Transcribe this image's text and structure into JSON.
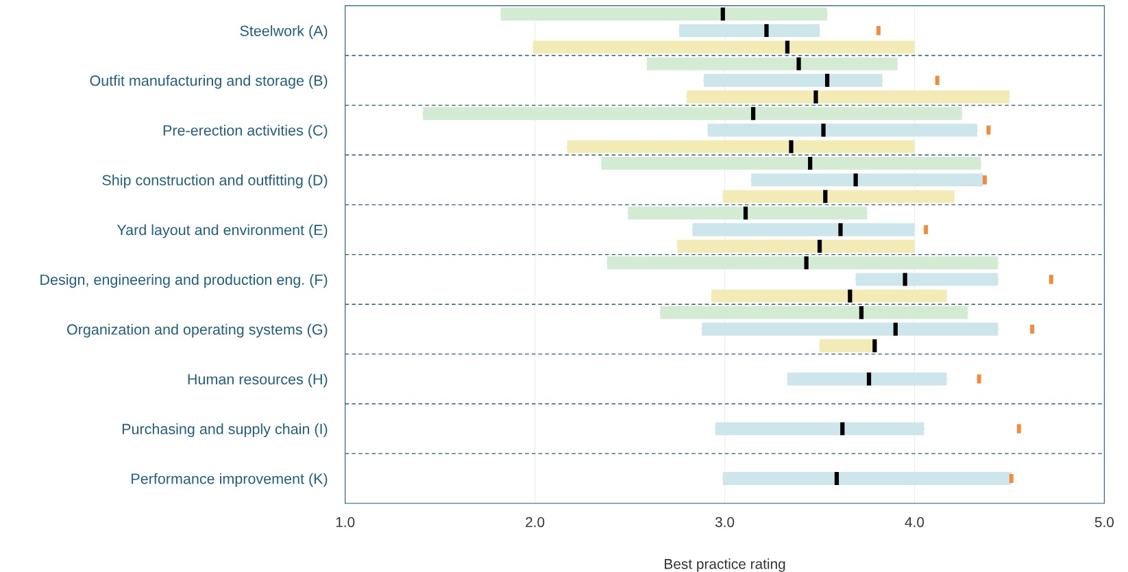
{
  "chart_data": {
    "type": "box",
    "orientation": "horizontal",
    "xlabel": "Best practice rating",
    "categories": [
      null,
      "Steelwork (A)",
      null,
      null,
      "Outfit manufacturing and storage (B)",
      null,
      null,
      "Pre-erection activities (C)",
      null,
      null,
      "Ship construction and outfitting (D)",
      null,
      null,
      "Yard layout and environment (E)",
      null,
      null,
      "Design, engineering and production eng. (F)",
      null,
      null,
      "Organization and operating systems (G)",
      null,
      null,
      "Human resources (H)",
      null,
      null,
      "Purchasing and supply chain (I)",
      null,
      null,
      "Performance improvement (K)",
      null
    ],
    "series": [
      {
        "color": "#d3ebd3",
        "boxes": [
          {
            "low": 1.82,
            "q1": 1.82,
            "median": 2.99,
            "q3": 3.54,
            "high": 3.54
          },
          null,
          null,
          {
            "low": 2.59,
            "q1": 2.59,
            "median": 3.39,
            "q3": 3.91,
            "high": 3.91
          },
          null,
          null,
          {
            "low": 1.41,
            "q1": 1.41,
            "median": 3.15,
            "q3": 4.25,
            "high": 4.25
          },
          null,
          null,
          {
            "low": 2.35,
            "q1": 2.35,
            "median": 3.45,
            "q3": 4.35,
            "high": 4.35
          },
          null,
          null,
          {
            "low": 2.49,
            "q1": 2.49,
            "median": 3.11,
            "q3": 3.75,
            "high": 3.75
          },
          null,
          null,
          {
            "low": 2.38,
            "q1": 2.38,
            "median": 3.43,
            "q3": 4.44,
            "high": 4.44
          },
          null,
          null,
          {
            "low": 2.66,
            "q1": 2.66,
            "median": 3.72,
            "q3": 4.28,
            "high": 4.28
          },
          null,
          null,
          null,
          null,
          null,
          null,
          null,
          null,
          null,
          null,
          null
        ]
      },
      {
        "color": "#cde6ec",
        "boxes": [
          null,
          {
            "low": 2.76,
            "q1": 2.76,
            "median": 3.22,
            "q3": 3.5,
            "high": 3.5
          },
          null,
          null,
          {
            "low": 2.89,
            "q1": 2.89,
            "median": 3.54,
            "q3": 3.83,
            "high": 3.83
          },
          null,
          null,
          {
            "low": 2.91,
            "q1": 2.91,
            "median": 3.52,
            "q3": 4.33,
            "high": 4.33
          },
          null,
          null,
          {
            "low": 3.14,
            "q1": 3.14,
            "median": 3.69,
            "q3": 4.36,
            "high": 4.36
          },
          null,
          null,
          {
            "low": 2.83,
            "q1": 2.83,
            "median": 3.61,
            "q3": 4.0,
            "high": 4.0
          },
          null,
          null,
          {
            "low": 3.69,
            "q1": 3.69,
            "median": 3.95,
            "q3": 4.44,
            "high": 4.44
          },
          null,
          null,
          {
            "low": 2.88,
            "q1": 2.88,
            "median": 3.9,
            "q3": 4.44,
            "high": 4.44
          },
          null,
          null,
          {
            "low": 3.33,
            "q1": 3.33,
            "median": 3.76,
            "q3": 4.17,
            "high": 4.17
          },
          null,
          null,
          {
            "low": 2.95,
            "q1": 2.95,
            "median": 3.62,
            "q3": 4.05,
            "high": 4.05
          },
          null,
          null,
          {
            "low": 2.99,
            "q1": 2.99,
            "median": 3.59,
            "q3": 4.51,
            "high": 4.51
          },
          null
        ]
      },
      {
        "color": "#f2ebb6",
        "boxes": [
          null,
          null,
          {
            "low": 1.99,
            "q1": 1.99,
            "median": 3.33,
            "q3": 4.0,
            "high": 4.0
          },
          null,
          null,
          {
            "low": 2.8,
            "q1": 2.8,
            "median": 3.48,
            "q3": 4.5,
            "high": 4.5
          },
          null,
          null,
          {
            "low": 2.17,
            "q1": 2.17,
            "median": 3.35,
            "q3": 4.0,
            "high": 4.0
          },
          null,
          null,
          {
            "low": 2.99,
            "q1": 2.99,
            "median": 3.53,
            "q3": 4.21,
            "high": 4.21
          },
          null,
          null,
          {
            "low": 2.75,
            "q1": 2.75,
            "median": 3.5,
            "q3": 4.0,
            "high": 4.0
          },
          null,
          null,
          {
            "low": 2.93,
            "q1": 2.93,
            "median": 3.66,
            "q3": 4.17,
            "high": 4.17
          },
          null,
          null,
          {
            "low": 3.5,
            "q1": 3.5,
            "median": 3.79,
            "q3": 3.79,
            "high": 3.79
          },
          null,
          null,
          null,
          null,
          null,
          null,
          null,
          null,
          null
        ]
      },
      {
        "type": "scatter",
        "color": "#f58a3a",
        "values": [
          null,
          3.81,
          null,
          null,
          4.12,
          null,
          null,
          4.39,
          null,
          null,
          4.37,
          null,
          null,
          4.06,
          null,
          null,
          4.72,
          null,
          null,
          4.62,
          null,
          null,
          4.34,
          null,
          null,
          4.55,
          null,
          null,
          4.51,
          null
        ]
      }
    ],
    "xlim": [
      1,
      5
    ],
    "xticks": [
      {
        "value": 1,
        "label": "1.0"
      },
      {
        "value": 2,
        "label": "2.0"
      },
      {
        "value": 3,
        "label": "3.0"
      },
      {
        "value": 4,
        "label": "4.0"
      },
      {
        "value": 5,
        "label": "5.0"
      }
    ],
    "grid": "x"
  }
}
